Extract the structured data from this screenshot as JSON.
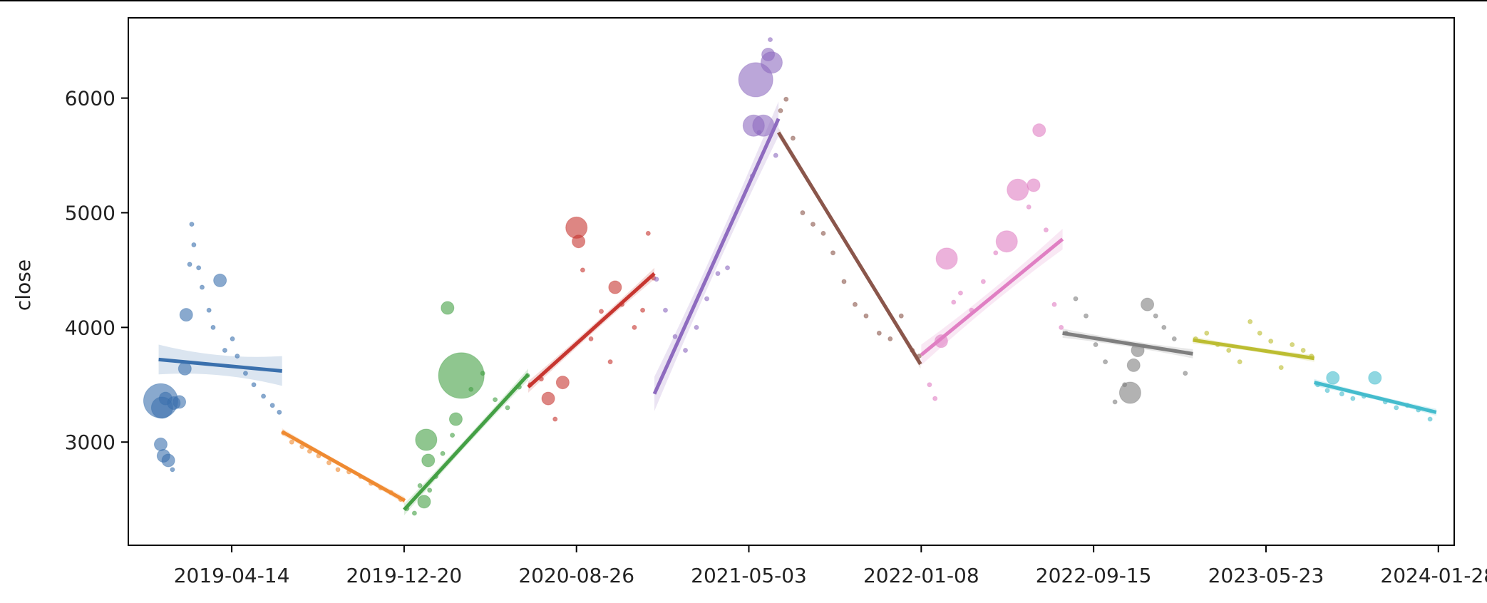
{
  "chart_data": {
    "type": "scatter",
    "title": "",
    "xlabel": "",
    "ylabel": "close",
    "x_ticks": [
      "2019-04-14",
      "2019-12-20",
      "2020-08-26",
      "2021-05-03",
      "2022-01-08",
      "2022-09-15",
      "2023-05-23",
      "2024-01-28"
    ],
    "y_ticks": [
      3000,
      4000,
      5000,
      6000
    ],
    "xlim": [
      "2018-11-15",
      "2024-02-20"
    ],
    "ylim": [
      2100,
      6700
    ],
    "grid": false,
    "legend": "none",
    "regression": "per-segment linear fit with confidence band",
    "series": [
      {
        "color": "#3a70ad",
        "fit": {
          "start": [
            "2018-12-29",
            3720
          ],
          "end": [
            "2019-06-26",
            3620
          ]
        },
        "band": 130,
        "points": [
          [
            "2019-01-01",
            3360,
            5
          ],
          [
            "2019-01-03",
            3300,
            3
          ],
          [
            "2019-01-08",
            3380,
            2
          ],
          [
            "2019-01-01",
            2980,
            2
          ],
          [
            "2019-01-05",
            2880,
            2
          ],
          [
            "2019-01-12",
            2840,
            2
          ],
          [
            "2019-01-18",
            2760,
            1
          ],
          [
            "2019-01-20",
            3340,
            2
          ],
          [
            "2019-01-28",
            3350,
            2
          ],
          [
            "2019-02-05",
            3640,
            2
          ],
          [
            "2019-02-07",
            4110,
            2
          ],
          [
            "2019-02-12",
            4550,
            1
          ],
          [
            "2019-02-15",
            4900,
            1
          ],
          [
            "2019-02-18",
            4720,
            1
          ],
          [
            "2019-02-25",
            4520,
            1
          ],
          [
            "2019-03-02",
            4350,
            1
          ],
          [
            "2019-03-12",
            4150,
            1
          ],
          [
            "2019-03-18",
            4000,
            1
          ],
          [
            "2019-03-28",
            4410,
            2
          ],
          [
            "2019-04-04",
            3800,
            1
          ],
          [
            "2019-04-15",
            3900,
            1
          ],
          [
            "2019-04-22",
            3750,
            1
          ],
          [
            "2019-05-04",
            3600,
            1
          ],
          [
            "2019-05-16",
            3500,
            1
          ],
          [
            "2019-05-30",
            3400,
            1
          ],
          [
            "2019-06-12",
            3320,
            1
          ],
          [
            "2019-06-22",
            3260,
            1
          ]
        ]
      },
      {
        "color": "#ef8a31",
        "fit": {
          "start": [
            "2019-06-26",
            3090
          ],
          "end": [
            "2019-12-21",
            2490
          ]
        },
        "band": 30,
        "points": [
          [
            "2019-06-28",
            3080,
            1
          ],
          [
            "2019-07-10",
            3000,
            1
          ],
          [
            "2019-07-25",
            2960,
            1
          ],
          [
            "2019-08-05",
            2920,
            1
          ],
          [
            "2019-08-18",
            2880,
            1
          ],
          [
            "2019-09-02",
            2820,
            1
          ],
          [
            "2019-09-15",
            2760,
            1
          ],
          [
            "2019-10-01",
            2740,
            1
          ],
          [
            "2019-10-18",
            2700,
            1
          ],
          [
            "2019-11-02",
            2640,
            1
          ],
          [
            "2019-11-16",
            2600,
            1
          ],
          [
            "2019-12-01",
            2560,
            1
          ],
          [
            "2019-12-15",
            2500,
            1
          ]
        ]
      },
      {
        "color": "#44a045",
        "fit": {
          "start": [
            "2019-12-20",
            2410
          ],
          "end": [
            "2020-06-17",
            3590
          ]
        },
        "band": 50,
        "points": [
          [
            "2019-12-24",
            2420,
            1
          ],
          [
            "2020-01-04",
            2380,
            1
          ],
          [
            "2020-01-12",
            2620,
            1
          ],
          [
            "2020-01-18",
            2480,
            2
          ],
          [
            "2020-01-21",
            3020,
            3
          ],
          [
            "2020-01-24",
            2840,
            2
          ],
          [
            "2020-01-26",
            2580,
            1
          ],
          [
            "2020-02-04",
            2700,
            1
          ],
          [
            "2020-02-14",
            2900,
            1
          ],
          [
            "2020-02-21",
            4170,
            2
          ],
          [
            "2020-02-28",
            3060,
            1
          ],
          [
            "2020-03-04",
            3200,
            2
          ],
          [
            "2020-03-12",
            3580,
            6
          ],
          [
            "2020-03-26",
            3460,
            1
          ],
          [
            "2020-04-12",
            3600,
            1
          ],
          [
            "2020-04-30",
            3370,
            1
          ],
          [
            "2020-05-18",
            3300,
            1
          ],
          [
            "2020-06-04",
            3480,
            1
          ],
          [
            "2020-06-16",
            3580,
            1
          ]
        ]
      },
      {
        "color": "#c73630",
        "fit": {
          "start": [
            "2020-06-17",
            3480
          ],
          "end": [
            "2020-12-17",
            4470
          ]
        },
        "band": 50,
        "points": [
          [
            "2020-06-20",
            3500,
            1
          ],
          [
            "2020-07-06",
            3550,
            1
          ],
          [
            "2020-07-16",
            3380,
            2
          ],
          [
            "2020-07-26",
            3200,
            1
          ],
          [
            "2020-08-06",
            3520,
            2
          ],
          [
            "2020-08-26",
            4870,
            3
          ],
          [
            "2020-08-29",
            4750,
            2
          ],
          [
            "2020-09-04",
            4500,
            1
          ],
          [
            "2020-09-16",
            3900,
            1
          ],
          [
            "2020-10-01",
            4140,
            1
          ],
          [
            "2020-10-14",
            3700,
            1
          ],
          [
            "2020-10-21",
            4350,
            2
          ],
          [
            "2020-10-31",
            4200,
            1
          ],
          [
            "2020-11-18",
            4000,
            1
          ],
          [
            "2020-11-30",
            4150,
            1
          ],
          [
            "2020-12-08",
            4820,
            1
          ],
          [
            "2020-12-16",
            4430,
            1
          ]
        ]
      },
      {
        "color": "#8e6bbf",
        "fit": {
          "start": [
            "2020-12-17",
            3420
          ],
          "end": [
            "2021-06-15",
            5820
          ]
        },
        "band": 150,
        "points": [
          [
            "2020-12-20",
            4420,
            1
          ],
          [
            "2021-01-02",
            4150,
            1
          ],
          [
            "2021-01-16",
            3920,
            1
          ],
          [
            "2021-01-31",
            3800,
            1
          ],
          [
            "2021-02-16",
            4000,
            1
          ],
          [
            "2021-03-03",
            4250,
            1
          ],
          [
            "2021-03-19",
            4470,
            1
          ],
          [
            "2021-04-02",
            4520,
            1
          ],
          [
            "2021-05-08",
            5320,
            1
          ],
          [
            "2021-05-10",
            5760,
            3
          ],
          [
            "2021-05-13",
            6160,
            5
          ],
          [
            "2021-05-18",
            5700,
            1
          ],
          [
            "2021-05-24",
            5760,
            3
          ],
          [
            "2021-05-31",
            6380,
            2
          ],
          [
            "2021-06-05",
            6310,
            3
          ],
          [
            "2021-06-11",
            5500,
            1
          ],
          [
            "2021-06-03",
            6510,
            1
          ]
        ]
      },
      {
        "color": "#8a564b",
        "fit": {
          "start": [
            "2021-06-15",
            5700
          ],
          "end": [
            "2022-01-07",
            3680
          ]
        },
        "band": 40,
        "points": [
          [
            "2021-06-18",
            5890,
            1
          ],
          [
            "2021-06-26",
            5990,
            1
          ],
          [
            "2021-07-06",
            5650,
            1
          ],
          [
            "2021-07-20",
            5000,
            1
          ],
          [
            "2021-08-04",
            4900,
            1
          ],
          [
            "2021-08-19",
            4820,
            1
          ],
          [
            "2021-09-02",
            4650,
            1
          ],
          [
            "2021-09-18",
            4400,
            1
          ],
          [
            "2021-10-04",
            4200,
            1
          ],
          [
            "2021-10-20",
            4100,
            1
          ],
          [
            "2021-11-08",
            3950,
            1
          ],
          [
            "2021-11-24",
            3900,
            1
          ],
          [
            "2021-12-10",
            4100,
            1
          ],
          [
            "2021-12-26",
            3800,
            1
          ],
          [
            "2022-01-05",
            3750,
            1
          ]
        ]
      },
      {
        "color": "#e07fc3",
        "fit": {
          "start": [
            "2022-01-08",
            3760
          ],
          "end": [
            "2022-08-01",
            4770
          ]
        },
        "band": 90,
        "points": [
          [
            "2022-01-20",
            3500,
            1
          ],
          [
            "2022-01-28",
            3380,
            1
          ],
          [
            "2022-02-06",
            3880,
            2
          ],
          [
            "2022-02-14",
            4600,
            3
          ],
          [
            "2022-02-24",
            4220,
            1
          ],
          [
            "2022-03-06",
            4300,
            1
          ],
          [
            "2022-03-22",
            4150,
            1
          ],
          [
            "2022-04-08",
            4400,
            1
          ],
          [
            "2022-04-26",
            4650,
            1
          ],
          [
            "2022-05-12",
            4750,
            3
          ],
          [
            "2022-05-28",
            5200,
            3
          ],
          [
            "2022-06-13",
            5050,
            1
          ],
          [
            "2022-06-20",
            5240,
            2
          ],
          [
            "2022-06-28",
            5720,
            2
          ],
          [
            "2022-07-08",
            4850,
            1
          ],
          [
            "2022-07-20",
            4200,
            1
          ],
          [
            "2022-07-30",
            4000,
            1
          ]
        ]
      },
      {
        "color": "#7f7f7f",
        "fit": {
          "start": [
            "2022-08-01",
            3950
          ],
          "end": [
            "2023-02-06",
            3770
          ]
        },
        "band": 40,
        "points": [
          [
            "2022-08-06",
            3950,
            1
          ],
          [
            "2022-08-20",
            4250,
            1
          ],
          [
            "2022-09-04",
            4100,
            1
          ],
          [
            "2022-09-18",
            3850,
            1
          ],
          [
            "2022-10-02",
            3700,
            1
          ],
          [
            "2022-10-16",
            3350,
            1
          ],
          [
            "2022-10-30",
            3500,
            1
          ],
          [
            "2022-11-07",
            3430,
            3
          ],
          [
            "2022-11-12",
            3670,
            2
          ],
          [
            "2022-11-18",
            3800,
            2
          ],
          [
            "2022-12-02",
            4200,
            2
          ],
          [
            "2022-12-14",
            4100,
            1
          ],
          [
            "2022-12-26",
            4000,
            1
          ],
          [
            "2023-01-10",
            3900,
            1
          ],
          [
            "2023-01-26",
            3600,
            1
          ]
        ]
      },
      {
        "color": "#bcbd31",
        "fit": {
          "start": [
            "2023-02-06",
            3890
          ],
          "end": [
            "2023-08-01",
            3730
          ]
        },
        "band": 30,
        "points": [
          [
            "2023-02-10",
            3900,
            1
          ],
          [
            "2023-02-26",
            3950,
            1
          ],
          [
            "2023-03-14",
            3850,
            1
          ],
          [
            "2023-03-30",
            3800,
            1
          ],
          [
            "2023-04-15",
            3700,
            1
          ],
          [
            "2023-04-30",
            4050,
            1
          ],
          [
            "2023-05-14",
            3950,
            1
          ],
          [
            "2023-05-30",
            3880,
            1
          ],
          [
            "2023-06-14",
            3650,
            1
          ],
          [
            "2023-06-30",
            3850,
            1
          ],
          [
            "2023-07-16",
            3800,
            1
          ],
          [
            "2023-07-28",
            3750,
            1
          ]
        ]
      },
      {
        "color": "#44bccd",
        "fit": {
          "start": [
            "2023-08-01",
            3520
          ],
          "end": [
            "2024-01-25",
            3260
          ]
        },
        "band": 30,
        "points": [
          [
            "2023-08-06",
            3500,
            1
          ],
          [
            "2023-08-20",
            3450,
            1
          ],
          [
            "2023-08-28",
            3560,
            2
          ],
          [
            "2023-09-10",
            3420,
            1
          ],
          [
            "2023-09-26",
            3380,
            1
          ],
          [
            "2023-10-12",
            3400,
            1
          ],
          [
            "2023-10-28",
            3560,
            2
          ],
          [
            "2023-11-12",
            3350,
            1
          ],
          [
            "2023-11-28",
            3300,
            1
          ],
          [
            "2023-12-14",
            3320,
            1
          ],
          [
            "2023-12-30",
            3280,
            1
          ],
          [
            "2024-01-16",
            3200,
            1
          ]
        ]
      }
    ]
  }
}
